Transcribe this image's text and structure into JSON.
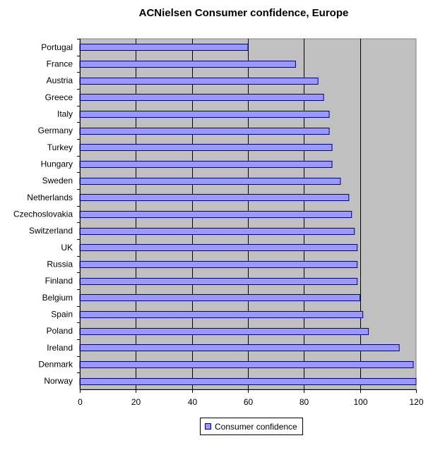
{
  "chart_data": {
    "type": "bar",
    "orientation": "horizontal",
    "title": "ACNielsen Consumer confidence, Europe",
    "xlabel": "",
    "ylabel": "",
    "categories": [
      "Portugal",
      "France",
      "Austria",
      "Greece",
      "Italy",
      "Germany",
      "Turkey",
      "Hungary",
      "Sweden",
      "Netherlands",
      "Czechoslovakia",
      "Switzerland",
      "UK",
      "Russia",
      "Finland",
      "Belgium",
      "Spain",
      "Poland",
      "Ireland",
      "Denmark",
      "Norway"
    ],
    "series": [
      {
        "name": "Consumer confidence",
        "values": [
          60,
          77,
          85,
          87,
          89,
          89,
          90,
          90,
          93,
          96,
          97,
          98,
          99,
          99,
          99,
          100,
          101,
          103,
          114,
          119,
          120
        ]
      }
    ],
    "xlim": [
      0,
      120
    ],
    "xticks": [
      "0",
      "20",
      "40",
      "60",
      "80",
      "100",
      "120"
    ],
    "grid": true,
    "legend_position": "bottom",
    "colors": {
      "bar_fill": "#9999ff",
      "bar_stroke": "#000080",
      "plot_bg": "#c0c0c0",
      "grid": "#000000"
    }
  }
}
